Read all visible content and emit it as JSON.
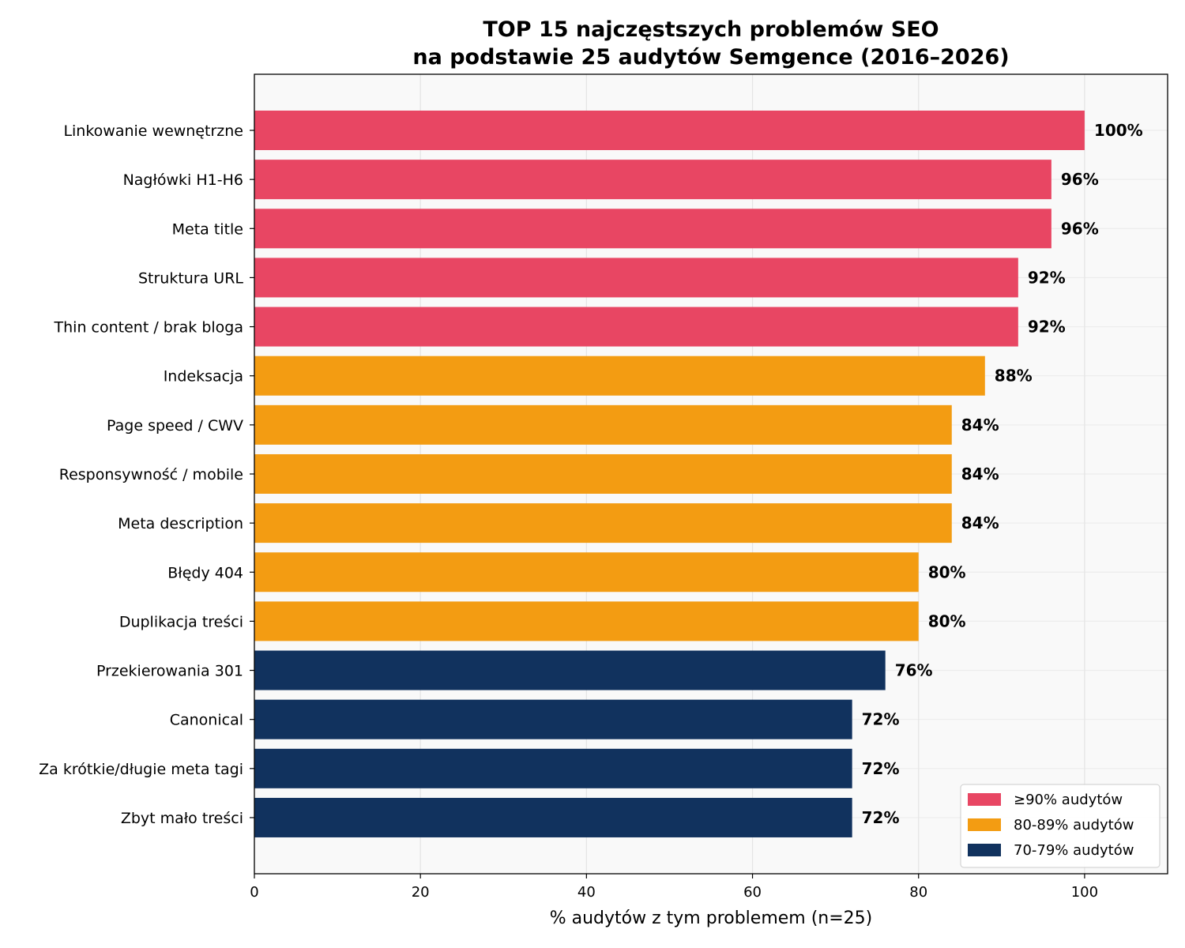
{
  "chart_data": {
    "type": "bar",
    "orientation": "horizontal",
    "title_lines": [
      "TOP 15 najczęstszych problemów SEO",
      "na podstawie 25 audytów Semgence (2016–2026)"
    ],
    "xlabel": "% audytów z tym problemem (n=25)",
    "ylabel": "",
    "xlim": [
      0,
      110
    ],
    "xticks": [
      0,
      20,
      40,
      60,
      80,
      100
    ],
    "grid": true,
    "legend_position": "bottom-right",
    "value_suffix": "%",
    "categories": [
      "Linkowanie wewnętrzne",
      "Nagłówki H1-H6",
      "Meta title",
      "Struktura URL",
      "Thin content / brak bloga",
      "Indeksacja",
      "Page speed / CWV",
      "Responsywność / mobile",
      "Meta description",
      "Błędy 404",
      "Duplikacja treści",
      "Przekierowania 301",
      "Canonical",
      "Za krótkie/długie meta tagi",
      "Zbyt mało treści"
    ],
    "values": [
      100,
      96,
      96,
      92,
      92,
      88,
      84,
      84,
      84,
      80,
      80,
      76,
      72,
      72,
      72
    ],
    "groups": [
      0,
      0,
      0,
      0,
      0,
      1,
      1,
      1,
      1,
      1,
      1,
      2,
      2,
      2,
      2
    ],
    "legend": [
      {
        "label": "≥90% audytów",
        "color": "#e84663"
      },
      {
        "label": "80-89% audytów",
        "color": "#f39c12"
      },
      {
        "label": "70-79% audytów",
        "color": "#11325e"
      }
    ],
    "background_color": "#f9f9f9",
    "grid_color": "#e4e4e4"
  }
}
